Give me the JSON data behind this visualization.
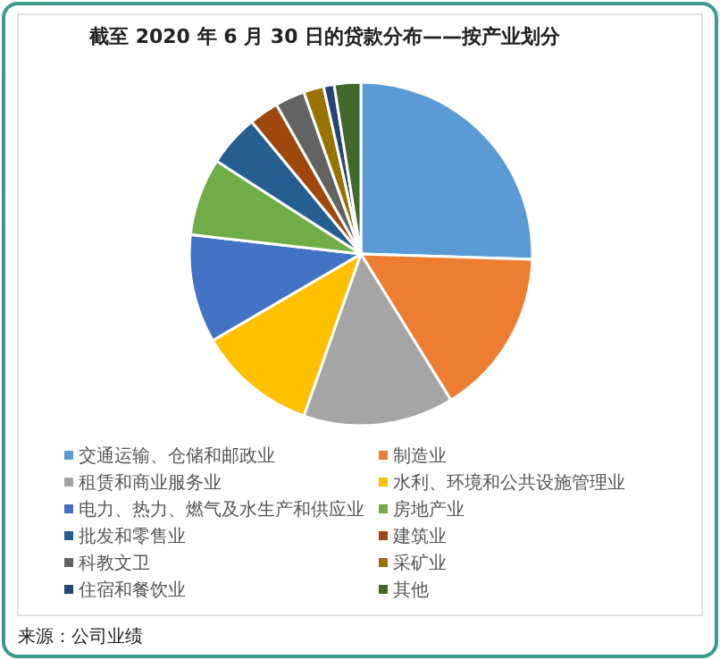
{
  "chart_data": {
    "type": "pie",
    "title": "截至 2020 年 6 月 30 日的贷款分布——按产业划分",
    "categories": [
      "交通运输、仓储和邮政业",
      "制造业",
      "租赁和商业服务业",
      "水利、环境和公共设施管理业",
      "电力、热力、燃气及水生产和供应业",
      "房地产业",
      "批发和零售业",
      "建筑业",
      "科教文卫",
      "采矿业",
      "住宿和餐饮业",
      "其他"
    ],
    "values": [
      25.5,
      15.7,
      14.2,
      11.2,
      10.2,
      7.3,
      4.9,
      2.8,
      2.8,
      1.9,
      1.0,
      2.5
    ],
    "colors": [
      "#5b9bd5",
      "#ed7d31",
      "#a5a5a5",
      "#ffc000",
      "#4472c4",
      "#70ad47",
      "#255e91",
      "#9e480e",
      "#636363",
      "#997300",
      "#264478",
      "#43682b"
    ],
    "legend": "bottom",
    "annotations": [
      "来源：公司业绩"
    ]
  }
}
